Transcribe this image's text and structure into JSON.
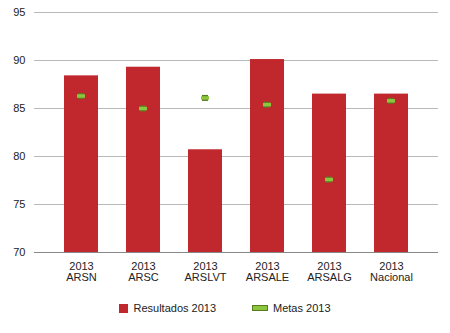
{
  "chart_data": {
    "type": "bar",
    "categories": [
      "ARSN",
      "ARSC",
      "ARSLVT",
      "ARSALE",
      "ARSALG",
      "Nacional"
    ],
    "category_years": [
      "2013",
      "2013",
      "2013",
      "2013",
      "2013",
      "2013"
    ],
    "series": [
      {
        "name": "Resultados 2013",
        "type": "bar",
        "color": "#c0282d",
        "values": [
          88.4,
          89.3,
          80.7,
          90.1,
          86.5,
          86.5
        ]
      },
      {
        "name": "Metas 2013",
        "type": "scatter",
        "marker": "dash",
        "color": "#8cc63f",
        "values": [
          86.3,
          85.0,
          86.1,
          85.4,
          77.6,
          85.8
        ]
      }
    ],
    "ylim": [
      70,
      95
    ],
    "yticks": [
      70,
      75,
      80,
      85,
      90,
      95
    ],
    "grid": true,
    "legend": "bottom"
  }
}
